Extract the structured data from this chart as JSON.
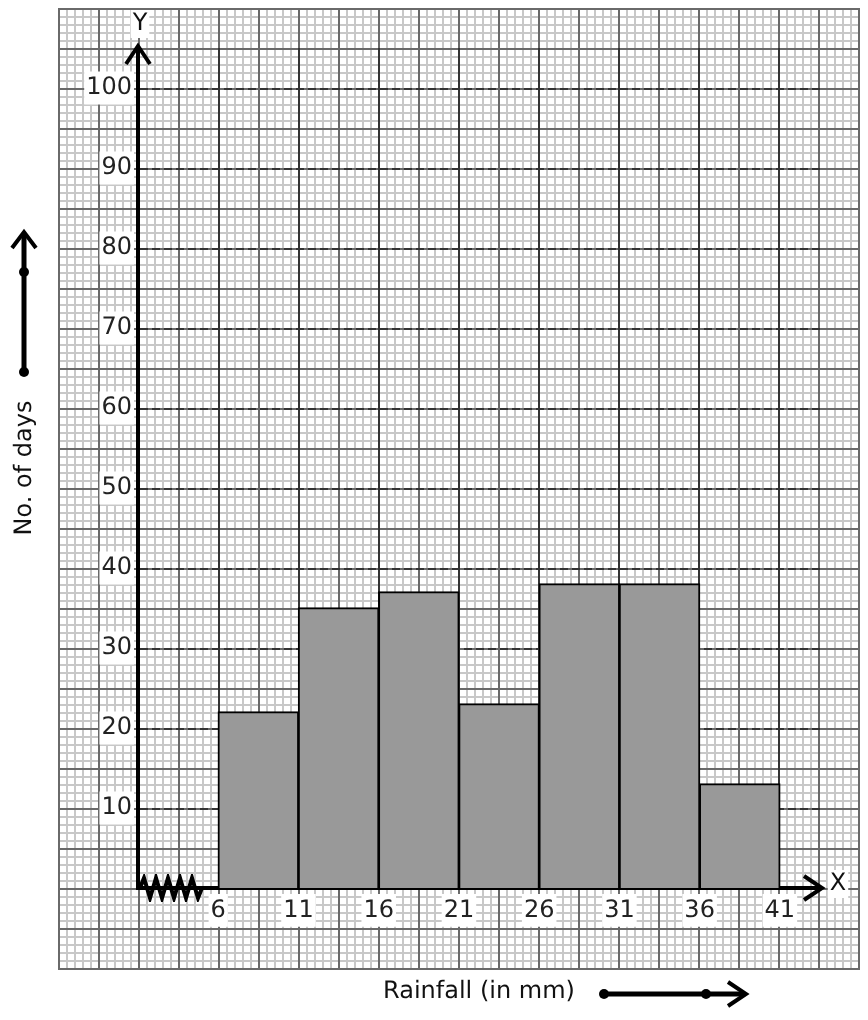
{
  "chart_data": {
    "type": "histogram",
    "xlabel": "Rainfall (in mm)",
    "ylabel": "No. of days",
    "bins": [
      6,
      11,
      16,
      21,
      26,
      31,
      36,
      41
    ],
    "values": [
      22,
      35,
      37,
      23,
      38,
      38,
      13
    ],
    "color": "#999999",
    "xlim": [
      1,
      43.5
    ],
    "xticks": [
      6,
      11,
      16,
      21,
      26,
      31,
      36,
      41
    ],
    "ylim": [
      0,
      105
    ],
    "yticks": [
      10,
      20,
      30,
      40,
      50,
      60,
      70,
      80,
      90,
      100
    ],
    "grid": true,
    "annotations": [
      "X",
      "Y"
    ]
  }
}
